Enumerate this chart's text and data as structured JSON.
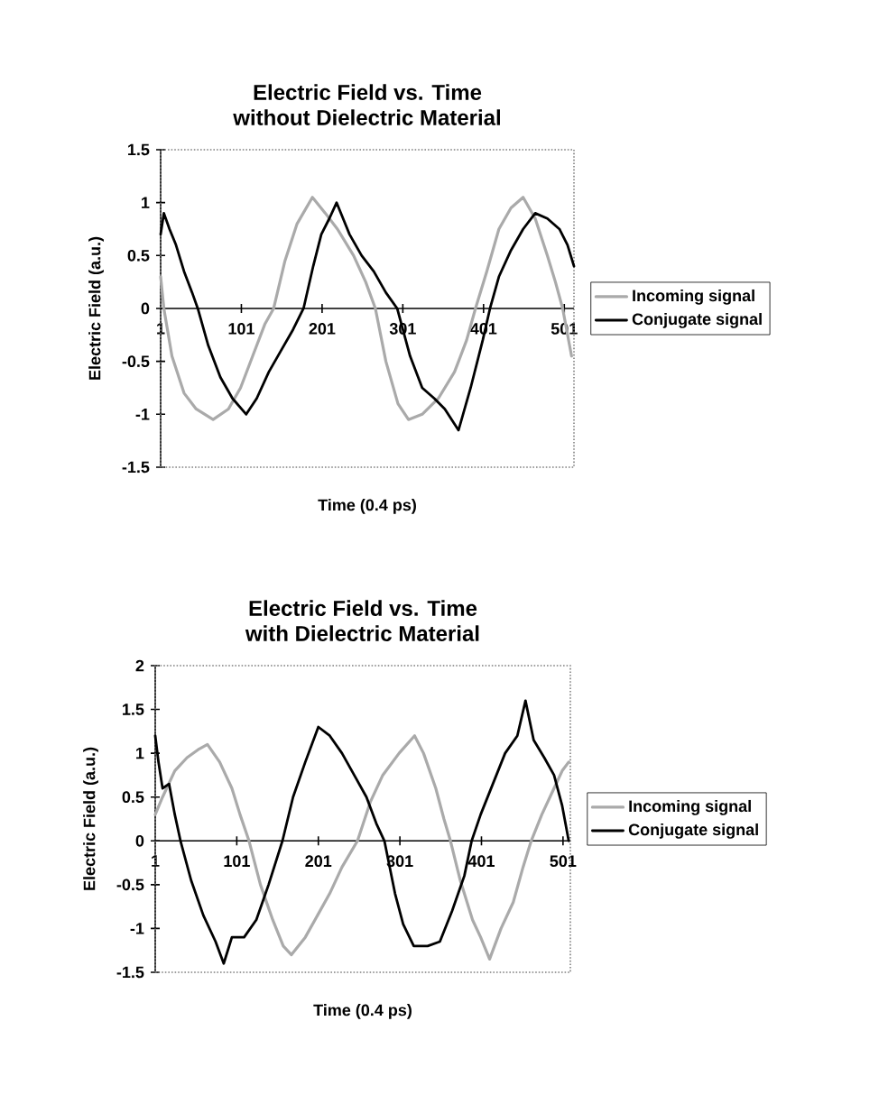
{
  "chart_data": [
    {
      "type": "line",
      "title": "Electric Field vs. Time",
      "subtitle": "without Dielectric Material",
      "xlabel": "Time (0.4 ps)",
      "ylabel": "Electric Field (a.u.)",
      "xlim": [
        1,
        513
      ],
      "ylim": [
        -1.5,
        1.5
      ],
      "xticks": [
        1,
        101,
        201,
        301,
        401,
        501
      ],
      "yticks": [
        -1.5,
        -1,
        -0.5,
        0,
        0.5,
        1,
        1.5
      ],
      "legend": "right",
      "series": [
        {
          "name": "Incoming signal",
          "color": "#aaaaaa",
          "x": [
            1,
            5,
            15,
            30,
            45,
            66,
            85,
            100,
            115,
            130,
            141,
            155,
            170,
            189,
            205,
            220,
            240,
            255,
            267,
            280,
            295,
            308,
            325,
            345,
            365,
            380,
            391,
            405,
            420,
            435,
            450,
            465,
            480,
            490,
            499,
            510
          ],
          "values": [
            0.3,
            0,
            -0.45,
            -0.8,
            -0.95,
            -1.05,
            -0.95,
            -0.75,
            -0.45,
            -0.15,
            0,
            0.45,
            0.8,
            1.05,
            0.9,
            0.75,
            0.5,
            0.25,
            0,
            -0.5,
            -0.9,
            -1.05,
            -1.0,
            -0.85,
            -0.6,
            -0.3,
            0,
            0.35,
            0.75,
            0.95,
            1.05,
            0.85,
            0.5,
            0.25,
            0,
            -0.45
          ]
        },
        {
          "name": "Conjugate signal",
          "color": "#000000",
          "x": [
            1,
            5,
            12,
            20,
            30,
            40,
            47,
            60,
            75,
            90,
            107,
            120,
            135,
            150,
            165,
            178,
            190,
            200,
            210,
            219,
            235,
            250,
            265,
            280,
            294,
            310,
            325,
            340,
            353,
            370,
            385,
            400,
            409,
            420,
            435,
            450,
            465,
            480,
            495,
            505,
            513
          ],
          "values": [
            0.7,
            0.9,
            0.75,
            0.6,
            0.35,
            0.15,
            0,
            -0.35,
            -0.65,
            -0.85,
            -1.0,
            -0.85,
            -0.6,
            -0.4,
            -0.2,
            0,
            0.4,
            0.7,
            0.85,
            1.0,
            0.7,
            0.5,
            0.35,
            0.15,
            0,
            -0.45,
            -0.75,
            -0.85,
            -0.95,
            -1.15,
            -0.75,
            -0.3,
            0,
            0.3,
            0.55,
            0.75,
            0.9,
            0.85,
            0.75,
            0.6,
            0.4
          ]
        }
      ]
    },
    {
      "type": "line",
      "title": "Electric Field vs. Time",
      "subtitle": "with Dielectric Material",
      "xlabel": "Time (0.4 ps)",
      "ylabel": "Electric Field (a.u.)",
      "xlim": [
        1,
        510
      ],
      "ylim": [
        -1.5,
        2
      ],
      "xticks": [
        1,
        101,
        201,
        301,
        401,
        501
      ],
      "yticks": [
        -1.5,
        -1,
        -0.5,
        0,
        0.5,
        1,
        1.5,
        2
      ],
      "legend": "right",
      "series": [
        {
          "name": "Incoming signal",
          "color": "#aaaaaa",
          "x": [
            1,
            10,
            25,
            40,
            55,
            65,
            80,
            95,
            105,
            116,
            130,
            145,
            158,
            168,
            185,
            200,
            215,
            230,
            249,
            265,
            280,
            300,
            319,
            330,
            345,
            355,
            363,
            375,
            390,
            400,
            411,
            425,
            440,
            452,
            462,
            475,
            490,
            500,
            508
          ],
          "values": [
            0.3,
            0.5,
            0.8,
            0.95,
            1.05,
            1.1,
            0.9,
            0.6,
            0.3,
            0,
            -0.5,
            -0.9,
            -1.2,
            -1.3,
            -1.1,
            -0.85,
            -0.6,
            -0.3,
            0,
            0.45,
            0.75,
            1.0,
            1.2,
            1.0,
            0.6,
            0.25,
            0,
            -0.45,
            -0.9,
            -1.1,
            -1.35,
            -1.0,
            -0.7,
            -0.3,
            0,
            0.3,
            0.6,
            0.8,
            0.9
          ]
        },
        {
          "name": "Conjugate signal",
          "color": "#000000",
          "x": [
            1,
            5,
            10,
            18,
            25,
            32,
            45,
            60,
            75,
            85,
            95,
            110,
            125,
            140,
            157,
            170,
            185,
            201,
            215,
            230,
            245,
            260,
            272,
            282,
            295,
            305,
            318,
            335,
            350,
            365,
            380,
            389,
            400,
            415,
            430,
            445,
            455,
            465,
            478,
            490,
            500,
            508
          ],
          "values": [
            1.2,
            0.9,
            0.6,
            0.65,
            0.3,
            0,
            -0.45,
            -0.85,
            -1.15,
            -1.4,
            -1.1,
            -1.1,
            -0.9,
            -0.5,
            0,
            0.5,
            0.9,
            1.3,
            1.2,
            1.0,
            0.75,
            0.5,
            0.2,
            0,
            -0.6,
            -0.95,
            -1.2,
            -1.2,
            -1.15,
            -0.8,
            -0.4,
            0,
            0.3,
            0.65,
            1.0,
            1.2,
            1.6,
            1.15,
            0.95,
            0.75,
            0.4,
            0.0
          ]
        }
      ]
    }
  ]
}
